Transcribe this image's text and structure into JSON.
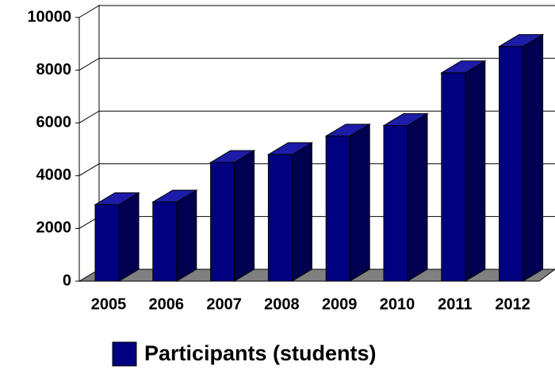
{
  "chart_data": {
    "type": "bar",
    "categories": [
      "2005",
      "2006",
      "2007",
      "2008",
      "2009",
      "2010",
      "2011",
      "2012"
    ],
    "series": [
      {
        "name": "Participants (students)",
        "color": "#000080",
        "values": [
          2900,
          3000,
          4500,
          4800,
          5500,
          5900,
          7900,
          8900
        ]
      }
    ],
    "ylim": [
      0,
      10000
    ],
    "yticks": [
      0,
      2000,
      4000,
      6000,
      8000,
      10000
    ],
    "grid": true,
    "legend": "bottom"
  }
}
